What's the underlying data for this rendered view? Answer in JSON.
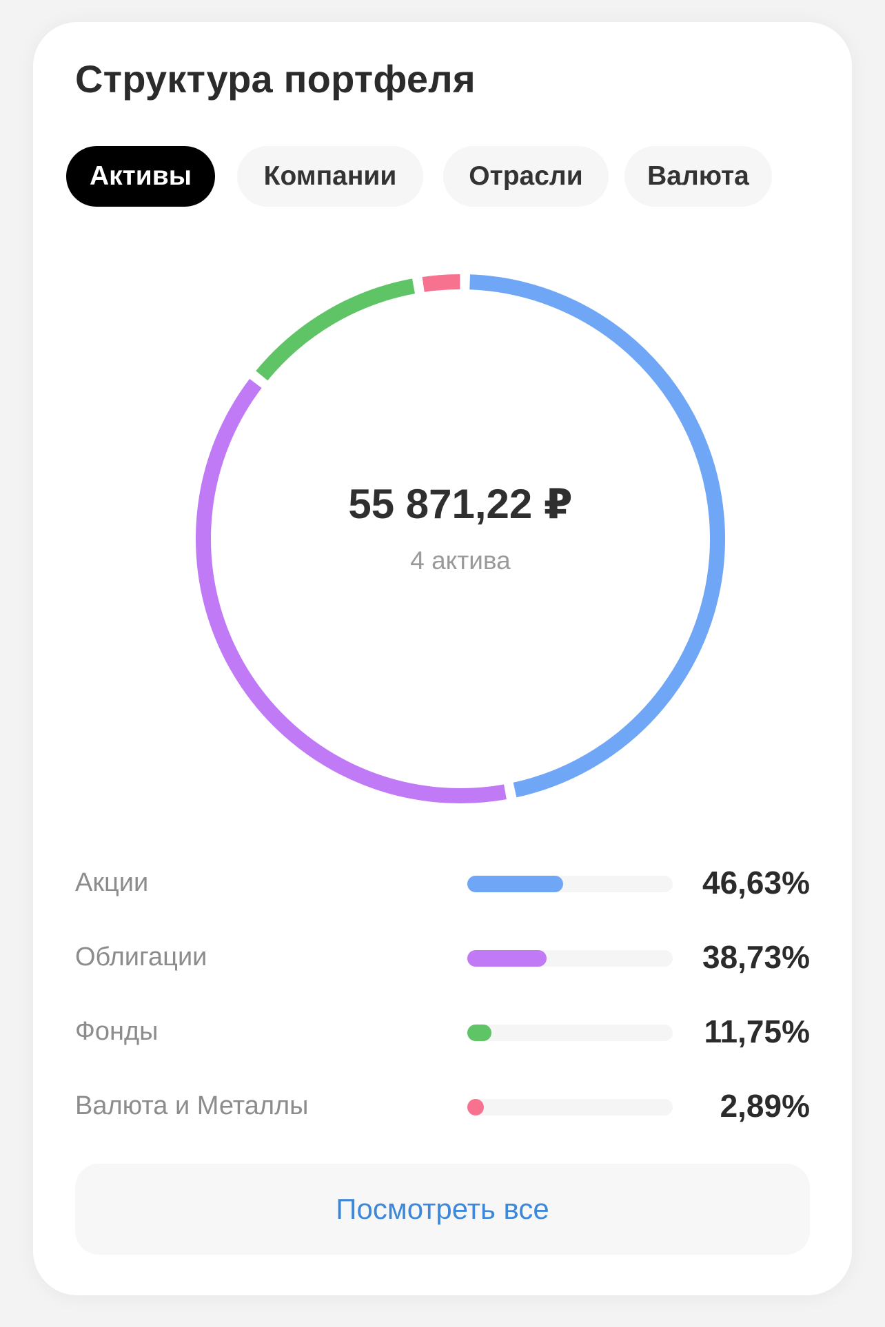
{
  "title": "Структура портфеля",
  "tabs": [
    {
      "label": "Активы",
      "active": true
    },
    {
      "label": "Компании",
      "active": false
    },
    {
      "label": "Отрасли",
      "active": false
    },
    {
      "label": "Валюта",
      "active": false
    }
  ],
  "summary": {
    "total": "55 871,22 ₽",
    "count_label": "4 актива"
  },
  "chart_data": {
    "type": "pie",
    "variant": "donut",
    "categories": [
      "Акции",
      "Облигации",
      "Фонды",
      "Валюта и Металлы"
    ],
    "values": [
      46.63,
      38.73,
      11.75,
      2.89
    ],
    "colors": [
      "#6fa6f5",
      "#c07af5",
      "#5fc466",
      "#f7728f"
    ],
    "title": ""
  },
  "legend": [
    {
      "label": "Акции",
      "value_text": "46,63%",
      "fraction": 0.4663,
      "color": "#6fa6f5"
    },
    {
      "label": "Облигации",
      "value_text": "38,73%",
      "fraction": 0.3873,
      "color": "#c07af5"
    },
    {
      "label": "Фонды",
      "value_text": "11,75%",
      "fraction": 0.1175,
      "color": "#5fc466"
    },
    {
      "label": "Валюта и Металлы",
      "value_text": "2,89%",
      "fraction": 0.0289,
      "color": "#f7728f"
    }
  ],
  "view_all_label": "Посмотреть все"
}
